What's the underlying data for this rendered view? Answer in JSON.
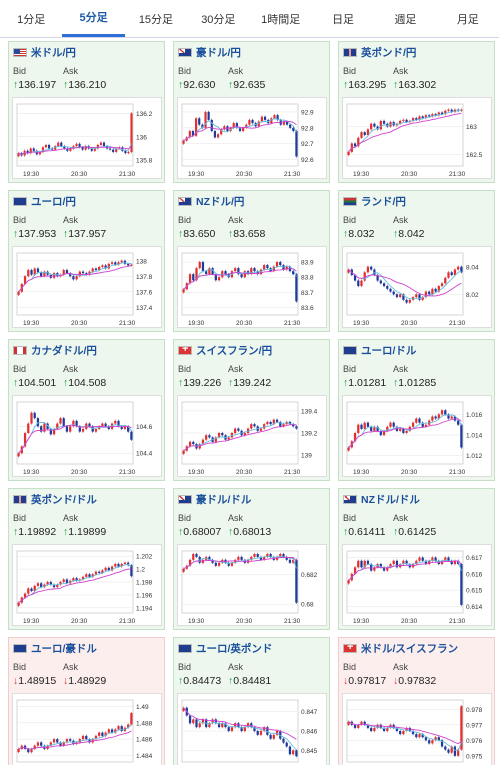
{
  "tabs": [
    {
      "label": "1分足",
      "active": false
    },
    {
      "label": "5分足",
      "active": true
    },
    {
      "label": "15分足",
      "active": false
    },
    {
      "label": "30分足",
      "active": false
    },
    {
      "label": "1時間足",
      "active": false
    },
    {
      "label": "日足",
      "active": false
    },
    {
      "label": "週足",
      "active": false
    },
    {
      "label": "月足",
      "active": false
    }
  ],
  "labels": {
    "bid": "Bid",
    "ask": "Ask"
  },
  "colors": {
    "up_bg": "#eef7ee",
    "down_bg": "#fdeeee",
    "candle_up": "#e03030",
    "candle_down": "#1e3a9a",
    "ma_line": "#d040d0",
    "ma_line2": "#66bbdd"
  },
  "cards": [
    {
      "pair": "米ドル/円",
      "flag": "us",
      "dir": "up",
      "bid": "136.197",
      "ask": "136.210",
      "chart_data": {
        "type": "candlestick",
        "x_ticks": [
          "19:30",
          "20:30",
          "21:30"
        ],
        "y_ticks": [
          "136.2",
          "136",
          "135.8"
        ],
        "ylim": [
          135.75,
          136.28
        ],
        "series": [
          135.86,
          135.84,
          135.88,
          135.86,
          135.9,
          135.88,
          135.85,
          135.87,
          135.91,
          135.93,
          135.9,
          135.89,
          135.92,
          135.95,
          135.92,
          135.9,
          135.88,
          135.9,
          135.92,
          135.94,
          135.91,
          135.89,
          135.92,
          135.9,
          135.88,
          135.9,
          135.93,
          135.95,
          135.92,
          135.9,
          135.89,
          135.87,
          135.9,
          135.91,
          135.88,
          135.86,
          135.87,
          136.2
        ]
      }
    },
    {
      "pair": "豪ドル/円",
      "flag": "au",
      "dir": "up",
      "bid": "92.630",
      "ask": "92.635",
      "chart_data": {
        "type": "candlestick",
        "x_ticks": [
          "19:30",
          "20:30",
          "21:30"
        ],
        "y_ticks": [
          "92.9",
          "92.8",
          "92.7",
          "92.6"
        ],
        "ylim": [
          92.56,
          92.95
        ],
        "series": [
          92.72,
          92.74,
          92.78,
          92.75,
          92.86,
          92.82,
          92.8,
          92.9,
          92.85,
          92.78,
          92.74,
          92.76,
          92.79,
          92.81,
          92.78,
          92.8,
          92.83,
          92.8,
          92.78,
          92.8,
          92.82,
          92.85,
          92.83,
          92.81,
          92.84,
          92.87,
          92.85,
          92.83,
          92.86,
          92.88,
          92.85,
          92.82,
          92.84,
          92.82,
          92.8,
          92.78,
          92.62
        ]
      }
    },
    {
      "pair": "英ポンド/円",
      "flag": "gb",
      "dir": "up",
      "bid": "163.295",
      "ask": "163.302",
      "chart_data": {
        "type": "candlestick",
        "x_ticks": [
          "19:30",
          "20:30",
          "21:30"
        ],
        "y_ticks": [
          "163",
          "162.5"
        ],
        "ylim": [
          162.3,
          163.4
        ],
        "series": [
          162.55,
          162.7,
          162.65,
          162.8,
          162.9,
          162.85,
          162.95,
          163.05,
          163.0,
          162.95,
          163.1,
          163.05,
          163.0,
          163.08,
          163.02,
          163.05,
          163.1,
          163.12,
          163.08,
          163.1,
          163.15,
          163.12,
          163.18,
          163.15,
          163.2,
          163.18,
          163.22,
          163.2,
          163.25,
          163.22,
          163.28,
          163.3,
          163.26,
          163.3,
          163.28,
          163.3
        ]
      }
    },
    {
      "pair": "ユーロ/円",
      "flag": "eu",
      "dir": "up",
      "bid": "137.953",
      "ask": "137.957",
      "chart_data": {
        "type": "candlestick",
        "x_ticks": [
          "19:30",
          "20:30",
          "21:30"
        ],
        "y_ticks": [
          "138",
          "137.8",
          "137.6",
          "137.4"
        ],
        "ylim": [
          137.3,
          138.1
        ],
        "series": [
          137.6,
          137.7,
          137.8,
          137.88,
          137.82,
          137.9,
          137.85,
          137.8,
          137.86,
          137.82,
          137.78,
          137.84,
          137.8,
          137.82,
          137.88,
          137.84,
          137.8,
          137.76,
          137.8,
          137.86,
          137.84,
          137.82,
          137.86,
          137.9,
          137.88,
          137.92,
          137.94,
          137.9,
          137.96,
          137.98,
          137.95,
          137.98,
          138.0,
          137.96,
          137.94,
          137.95
        ]
      }
    },
    {
      "pair": "NZドル/円",
      "flag": "nz",
      "dir": "up",
      "bid": "83.650",
      "ask": "83.658",
      "chart_data": {
        "type": "candlestick",
        "x_ticks": [
          "19:30",
          "20:30",
          "21:30"
        ],
        "y_ticks": [
          "83.9",
          "83.8",
          "83.7",
          "83.6"
        ],
        "ylim": [
          83.55,
          83.96
        ],
        "series": [
          83.72,
          83.76,
          83.82,
          83.78,
          83.86,
          83.9,
          83.84,
          83.82,
          83.86,
          83.82,
          83.78,
          83.8,
          83.84,
          83.82,
          83.8,
          83.84,
          83.86,
          83.82,
          83.8,
          83.84,
          83.82,
          83.86,
          83.84,
          83.82,
          83.85,
          83.88,
          83.86,
          83.84,
          83.87,
          83.9,
          83.88,
          83.85,
          83.87,
          83.84,
          83.82,
          83.64
        ]
      }
    },
    {
      "pair": "ランド/円",
      "flag": "za",
      "dir": "up",
      "bid": "8.032",
      "ask": "8.042",
      "chart_data": {
        "type": "candlestick",
        "x_ticks": [
          "19:30",
          "20:30",
          "21:30"
        ],
        "y_ticks": [
          "8.04",
          "8.02"
        ],
        "ylim": [
          8.005,
          8.05
        ],
        "series": [
          8.038,
          8.034,
          8.03,
          8.026,
          8.03,
          8.036,
          8.04,
          8.038,
          8.034,
          8.03,
          8.028,
          8.026,
          8.024,
          8.022,
          8.02,
          8.018,
          8.02,
          8.016,
          8.014,
          8.016,
          8.018,
          8.02,
          8.016,
          8.018,
          8.022,
          8.02,
          8.024,
          8.022,
          8.026,
          8.028,
          8.032,
          8.036,
          8.034,
          8.038,
          8.04,
          8.036
        ]
      }
    },
    {
      "pair": "カナダドル/円",
      "flag": "ca",
      "dir": "up",
      "bid": "104.501",
      "ask": "104.508",
      "chart_data": {
        "type": "candlestick",
        "x_ticks": [
          "19:30",
          "20:30",
          "21:30"
        ],
        "y_ticks": [
          "104.6",
          "104.4"
        ],
        "ylim": [
          104.32,
          104.78
        ],
        "series": [
          104.4,
          104.45,
          104.55,
          104.62,
          104.7,
          104.66,
          104.6,
          104.56,
          104.62,
          104.58,
          104.54,
          104.58,
          104.62,
          104.66,
          104.6,
          104.56,
          104.6,
          104.64,
          104.6,
          104.56,
          104.58,
          104.62,
          104.6,
          104.56,
          104.58,
          104.6,
          104.62,
          104.6,
          104.58,
          104.62,
          104.64,
          104.6,
          104.58,
          104.6,
          104.56,
          104.5
        ]
      }
    },
    {
      "pair": "スイスフラン/円",
      "flag": "ch",
      "dir": "up",
      "bid": "139.226",
      "ask": "139.242",
      "chart_data": {
        "type": "candlestick",
        "x_ticks": [
          "19:30",
          "20:30",
          "21:30"
        ],
        "y_ticks": [
          "139.4",
          "139.2",
          "139"
        ],
        "ylim": [
          138.92,
          139.48
        ],
        "series": [
          139.04,
          139.08,
          139.12,
          139.1,
          139.06,
          139.1,
          139.14,
          139.18,
          139.16,
          139.12,
          139.16,
          139.2,
          139.18,
          139.14,
          139.16,
          139.2,
          139.24,
          139.22,
          139.18,
          139.2,
          139.24,
          139.28,
          139.26,
          139.22,
          139.24,
          139.28,
          139.3,
          139.28,
          139.32,
          139.3,
          139.26,
          139.28,
          139.3,
          139.28,
          139.26,
          139.24
        ]
      }
    },
    {
      "pair": "ユーロ/ドル",
      "flag": "eu",
      "dir": "up",
      "bid": "1.01281",
      "ask": "1.01285",
      "chart_data": {
        "type": "candlestick",
        "x_ticks": [
          "19:30",
          "20:30",
          "21:30"
        ],
        "y_ticks": [
          "1.016",
          "1.014",
          "1.012"
        ],
        "ylim": [
          1.0112,
          1.0172
        ],
        "series": [
          1.0128,
          1.0134,
          1.0142,
          1.015,
          1.0146,
          1.0152,
          1.0148,
          1.0144,
          1.0148,
          1.0144,
          1.014,
          1.0144,
          1.0148,
          1.0152,
          1.0148,
          1.0144,
          1.0146,
          1.0142,
          1.0144,
          1.0148,
          1.0152,
          1.0156,
          1.0152,
          1.0148,
          1.015,
          1.0154,
          1.0158,
          1.0156,
          1.016,
          1.0164,
          1.016,
          1.0156,
          1.0158,
          1.0154,
          1.015,
          1.0128
        ]
      }
    },
    {
      "pair": "英ポンド/ドル",
      "flag": "gb",
      "dir": "up",
      "bid": "1.19892",
      "ask": "1.19899",
      "chart_data": {
        "type": "candlestick",
        "x_ticks": [
          "19:30",
          "20:30",
          "21:30"
        ],
        "y_ticks": [
          "1.202",
          "1.2",
          "1.198",
          "1.196",
          "1.194"
        ],
        "ylim": [
          1.1932,
          1.2028
        ],
        "series": [
          1.1948,
          1.1956,
          1.1962,
          1.197,
          1.1966,
          1.1974,
          1.1978,
          1.1972,
          1.1976,
          1.198,
          1.1976,
          1.1972,
          1.1976,
          1.198,
          1.1984,
          1.1978,
          1.1982,
          1.1986,
          1.1982,
          1.1984,
          1.1988,
          1.1992,
          1.1988,
          1.1992,
          1.1996,
          1.1994,
          1.1998,
          1.2002,
          1.1998,
          1.2004,
          1.2008,
          1.2004,
          1.2008,
          1.201,
          1.2006,
          1.1989
        ]
      }
    },
    {
      "pair": "豪ドル/ドル",
      "flag": "au",
      "dir": "up",
      "bid": "0.68007",
      "ask": "0.68013",
      "chart_data": {
        "type": "candlestick",
        "x_ticks": [
          "19:30",
          "20:30",
          "21:30"
        ],
        "y_ticks": [
          "0.682",
          "0.68"
        ],
        "ylim": [
          0.6794,
          0.6836
        ],
        "series": [
          0.6824,
          0.6826,
          0.683,
          0.6834,
          0.6832,
          0.6828,
          0.683,
          0.6832,
          0.683,
          0.6828,
          0.6826,
          0.6828,
          0.683,
          0.6828,
          0.6826,
          0.6828,
          0.683,
          0.6832,
          0.683,
          0.6828,
          0.683,
          0.6832,
          0.6834,
          0.6832,
          0.683,
          0.6832,
          0.6834,
          0.6832,
          0.683,
          0.6832,
          0.6834,
          0.6832,
          0.683,
          0.6828,
          0.683,
          0.6801
        ]
      }
    },
    {
      "pair": "NZドル/ドル",
      "flag": "nz",
      "dir": "up",
      "bid": "0.61411",
      "ask": "0.61425",
      "chart_data": {
        "type": "candlestick",
        "x_ticks": [
          "19:30",
          "20:30",
          "21:30"
        ],
        "y_ticks": [
          "0.617",
          "0.616",
          "0.615",
          "0.614"
        ],
        "ylim": [
          0.6136,
          0.6174
        ],
        "series": [
          0.6156,
          0.616,
          0.6164,
          0.6168,
          0.6164,
          0.6168,
          0.6166,
          0.6162,
          0.6164,
          0.6166,
          0.6164,
          0.6162,
          0.6164,
          0.6166,
          0.6168,
          0.6164,
          0.6166,
          0.6168,
          0.6166,
          0.6164,
          0.6166,
          0.6168,
          0.617,
          0.6168,
          0.6166,
          0.6168,
          0.617,
          0.6168,
          0.6166,
          0.6168,
          0.617,
          0.6168,
          0.6166,
          0.6168,
          0.6166,
          0.6141
        ]
      }
    },
    {
      "pair": "ユーロ/豪ドル",
      "flag": "eu",
      "dir": "down",
      "bid": "1.48915",
      "ask": "1.48929",
      "chart_data": {
        "type": "candlestick",
        "x_ticks": [
          "19:30",
          "20:30",
          "21:30"
        ],
        "y_ticks": [
          "1.49",
          "1.488",
          "1.486",
          "1.484"
        ],
        "ylim": [
          1.4832,
          1.4908
        ],
        "series": [
          1.4848,
          1.4852,
          1.4848,
          1.4844,
          1.4848,
          1.4852,
          1.4856,
          1.4852,
          1.4848,
          1.4852,
          1.4856,
          1.486,
          1.4856,
          1.4852,
          1.4856,
          1.486,
          1.4858,
          1.4854,
          1.4856,
          1.486,
          1.4864,
          1.486,
          1.4856,
          1.486,
          1.4864,
          1.4868,
          1.4864,
          1.4868,
          1.4872,
          1.4868,
          1.4872,
          1.4876,
          1.487,
          1.4874,
          1.4878,
          1.4892
        ]
      }
    },
    {
      "pair": "ユーロ/英ポンド",
      "flag": "eu",
      "dir": "up",
      "bid": "0.84473",
      "ask": "0.84481",
      "chart_data": {
        "type": "candlestick",
        "x_ticks": [
          "19:30",
          "20:30",
          "21:30"
        ],
        "y_ticks": [
          "0.847",
          "0.846",
          "0.845"
        ],
        "ylim": [
          0.8444,
          0.8476
        ],
        "series": [
          0.8472,
          0.8468,
          0.8464,
          0.8466,
          0.8462,
          0.8464,
          0.8466,
          0.8462,
          0.8464,
          0.8466,
          0.8464,
          0.8462,
          0.8464,
          0.8462,
          0.846,
          0.8462,
          0.8464,
          0.8462,
          0.846,
          0.8462,
          0.8464,
          0.8462,
          0.846,
          0.8458,
          0.846,
          0.8462,
          0.8458,
          0.8456,
          0.8458,
          0.846,
          0.8456,
          0.8454,
          0.8452,
          0.8448,
          0.845,
          0.8447
        ]
      }
    },
    {
      "pair": "米ドル/スイスフラン",
      "flag": "ch",
      "dir": "down",
      "bid": "0.97817",
      "ask": "0.97832",
      "chart_data": {
        "type": "candlestick",
        "x_ticks": [
          "19:30",
          "20:30",
          "21:30"
        ],
        "y_ticks": [
          "0.978",
          "0.977",
          "0.976",
          "0.975"
        ],
        "ylim": [
          0.9746,
          0.9786
        ],
        "series": [
          0.9772,
          0.977,
          0.9768,
          0.977,
          0.9772,
          0.977,
          0.9768,
          0.9766,
          0.9768,
          0.977,
          0.9768,
          0.9766,
          0.9768,
          0.977,
          0.9768,
          0.9766,
          0.9764,
          0.9766,
          0.9768,
          0.9766,
          0.9764,
          0.9762,
          0.9764,
          0.9762,
          0.976,
          0.9758,
          0.976,
          0.9762,
          0.976,
          0.9756,
          0.9754,
          0.9752,
          0.9756,
          0.975,
          0.9754,
          0.9782
        ]
      }
    }
  ]
}
